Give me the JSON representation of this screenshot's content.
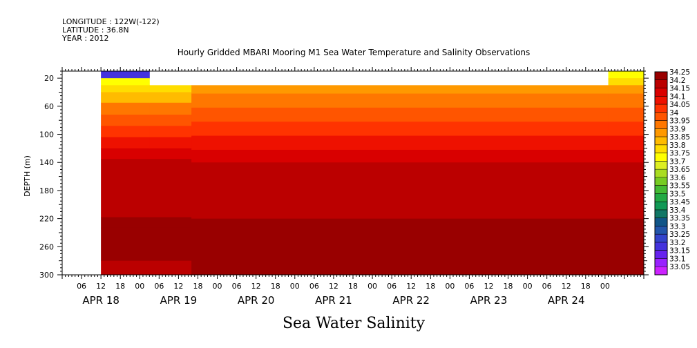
{
  "header": {
    "longitude": "LONGITUDE : 122W(-122)",
    "latitude": "LATITUDE : 36.8N",
    "year": "YEAR : 2012",
    "title": "Hourly Gridded MBARI Mooring M1 Sea Water Temperature and Salinity Observations"
  },
  "footer": {
    "variable_title": "Sea Water Salinity"
  },
  "chart_data": {
    "type": "heatmap",
    "title": "Hourly Gridded MBARI Mooring M1 Sea Water Temperature and Salinity Observations",
    "xlabel": "",
    "ylabel": "DEPTH (m)",
    "variable": "Sea Water Salinity",
    "x_start_label": "APR 18 00",
    "xlim_hours": [
      0,
      180
    ],
    "data_start_hour": 12,
    "data_end_hour": 180,
    "y_reversed": true,
    "ylim": [
      10,
      300
    ],
    "y_ticks": [
      20,
      60,
      100,
      140,
      180,
      220,
      260,
      300
    ],
    "x_tick_labels": [
      "06",
      "12",
      "18",
      "00",
      "06",
      "12",
      "18",
      "00",
      "06",
      "12",
      "18",
      "00",
      "06",
      "12",
      "18",
      "00",
      "06",
      "12",
      "18",
      "00",
      "06",
      "12",
      "18",
      "00",
      "06",
      "12",
      "18",
      "00"
    ],
    "x_date_labels": [
      "APR 18",
      "APR 19",
      "APR 20",
      "APR 21",
      "APR 22",
      "APR 23",
      "APR 24"
    ],
    "colorbar": {
      "levels": [
        "34.25",
        "34.2",
        "34.15",
        "34.1",
        "34.05",
        "34",
        "33.95",
        "33.9",
        "33.85",
        "33.8",
        "33.75",
        "33.7",
        "33.65",
        "33.6",
        "33.55",
        "33.5",
        "33.45",
        "33.4",
        "33.35",
        "33.3",
        "33.25",
        "33.2",
        "33.15",
        "33.1",
        "33.05"
      ],
      "colors": [
        "#990000",
        "#bb0000",
        "#d90000",
        "#ee1100",
        "#ff3300",
        "#ff5500",
        "#ff7700",
        "#ff9900",
        "#ffbb00",
        "#ffdd00",
        "#ffff00",
        "#ddee22",
        "#aadd22",
        "#77cc22",
        "#44bb33",
        "#22aa44",
        "#119955",
        "#117766",
        "#115588",
        "#2255aa",
        "#3344cc",
        "#4433dd",
        "#6622ee",
        "#9922ff",
        "#cc22ff"
      ]
    },
    "depth_profiles": [
      {
        "period": "APR 18 12 - APR 18 18",
        "hours": [
          12,
          27
        ],
        "layers": [
          {
            "from": 10,
            "to": 20,
            "value": 33.2
          },
          {
            "from": 20,
            "to": 30,
            "value": 33.72
          },
          {
            "from": 30,
            "to": 40,
            "value": 33.8
          },
          {
            "from": 40,
            "to": 55,
            "value": 33.85
          },
          {
            "from": 55,
            "to": 72,
            "value": 33.92
          },
          {
            "from": 72,
            "to": 88,
            "value": 33.97
          },
          {
            "from": 88,
            "to": 104,
            "value": 34.02
          },
          {
            "from": 104,
            "to": 120,
            "value": 34.07
          },
          {
            "from": 120,
            "to": 135,
            "value": 34.12
          },
          {
            "from": 135,
            "to": 218,
            "value": 34.17
          },
          {
            "from": 218,
            "to": 233,
            "value": 34.22
          },
          {
            "from": 233,
            "to": 280,
            "value": 34.25
          },
          {
            "from": 280,
            "to": 300,
            "value": 34.2
          }
        ]
      },
      {
        "period": "APR 18 18 - APR 19 07",
        "hours": [
          27,
          40
        ],
        "layers": [
          {
            "from": 30,
            "to": 40,
            "value": 33.8
          },
          {
            "from": 40,
            "to": 55,
            "value": 33.85
          },
          {
            "from": 55,
            "to": 72,
            "value": 33.92
          },
          {
            "from": 72,
            "to": 88,
            "value": 33.97
          },
          {
            "from": 88,
            "to": 104,
            "value": 34.02
          },
          {
            "from": 104,
            "to": 120,
            "value": 34.07
          },
          {
            "from": 120,
            "to": 135,
            "value": 34.12
          },
          {
            "from": 135,
            "to": 218,
            "value": 34.17
          },
          {
            "from": 218,
            "to": 233,
            "value": 34.22
          },
          {
            "from": 233,
            "to": 280,
            "value": 34.25
          },
          {
            "from": 280,
            "to": 300,
            "value": 34.2
          }
        ]
      },
      {
        "period": "APR 19 07 - APR 24 15",
        "hours": [
          40,
          169
        ],
        "layers": [
          {
            "from": 30,
            "to": 42,
            "value": 33.88
          },
          {
            "from": 42,
            "to": 62,
            "value": 33.92
          },
          {
            "from": 62,
            "to": 82,
            "value": 33.97
          },
          {
            "from": 82,
            "to": 102,
            "value": 34.02
          },
          {
            "from": 102,
            "to": 122,
            "value": 34.07
          },
          {
            "from": 122,
            "to": 140,
            "value": 34.12
          },
          {
            "from": 140,
            "to": 220,
            "value": 34.17
          },
          {
            "from": 220,
            "to": 241,
            "value": 34.22
          },
          {
            "from": 241,
            "to": 300,
            "value": 34.25
          }
        ]
      },
      {
        "period": "APR 24 15 - APR 25 00",
        "hours": [
          169,
          180
        ],
        "layers": [
          {
            "from": 10,
            "to": 20,
            "value": 33.72
          },
          {
            "from": 20,
            "to": 30,
            "value": 33.77
          },
          {
            "from": 30,
            "to": 42,
            "value": 33.88
          },
          {
            "from": 42,
            "to": 62,
            "value": 33.92
          },
          {
            "from": 62,
            "to": 82,
            "value": 33.97
          },
          {
            "from": 82,
            "to": 102,
            "value": 34.02
          },
          {
            "from": 102,
            "to": 122,
            "value": 34.07
          },
          {
            "from": 122,
            "to": 140,
            "value": 34.12
          },
          {
            "from": 140,
            "to": 220,
            "value": 34.17
          },
          {
            "from": 220,
            "to": 241,
            "value": 34.22
          },
          {
            "from": 241,
            "to": 300,
            "value": 34.25
          }
        ]
      }
    ]
  }
}
